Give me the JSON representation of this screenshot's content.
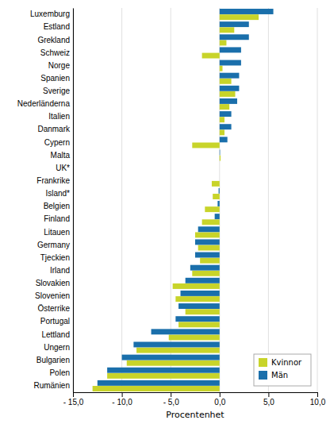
{
  "chart_data": {
    "type": "bar",
    "orientation": "horizontal",
    "xlabel": "Procentenhet",
    "categories": [
      "Luxemburg",
      "Estland",
      "Grekland",
      "Schweiz",
      "Norge",
      "Spanien",
      "Sverige",
      "Nederländerna",
      "Italien",
      "Danmark",
      "Cypern",
      "Malta",
      "UK*",
      "Frankrike",
      "Island*",
      "Belgien",
      "Finland",
      "Litauen",
      "Germany",
      "Tjeckien",
      "Irland",
      "Slovakien",
      "Slovenien",
      "Österrike",
      "Portugal",
      "Lettland",
      "Ungern",
      "Bulgarien",
      "Polen",
      "Rumänien"
    ],
    "series": [
      {
        "name": "Kvinnor",
        "color": "#c8d42a",
        "values": [
          4.0,
          1.5,
          0.7,
          -1.8,
          0.3,
          1.2,
          1.6,
          1.0,
          0.5,
          0.5,
          -2.8,
          0.1,
          0.0,
          -0.8,
          -0.7,
          -1.5,
          -1.8,
          -2.5,
          -2.2,
          -2.0,
          -2.8,
          -4.8,
          -4.5,
          -3.5,
          -4.2,
          -5.2,
          -8.5,
          -9.5,
          -11.5,
          -13.0
        ]
      },
      {
        "name": "Män",
        "color": "#1a6fab",
        "values": [
          5.5,
          3.0,
          3.0,
          2.2,
          2.2,
          2.0,
          2.0,
          1.8,
          1.2,
          1.2,
          0.8,
          0.05,
          0.0,
          0.0,
          -0.1,
          -0.2,
          -0.5,
          -2.2,
          -2.5,
          -2.5,
          -3.0,
          -3.5,
          -4.0,
          -4.2,
          -4.5,
          -7.0,
          -8.8,
          -10.0,
          -11.5,
          -12.5
        ]
      }
    ],
    "xlim": [
      -15,
      10
    ],
    "xticks": [
      {
        "value": -15,
        "label": "- 15,0"
      },
      {
        "value": -10,
        "label": "- 10,0"
      },
      {
        "value": -5,
        "label": "- 5,0"
      },
      {
        "value": 0,
        "label": "0,0"
      },
      {
        "value": 5,
        "label": "5,0"
      },
      {
        "value": 10,
        "label": "10,0"
      }
    ],
    "grid": true,
    "legend": "lower right"
  }
}
